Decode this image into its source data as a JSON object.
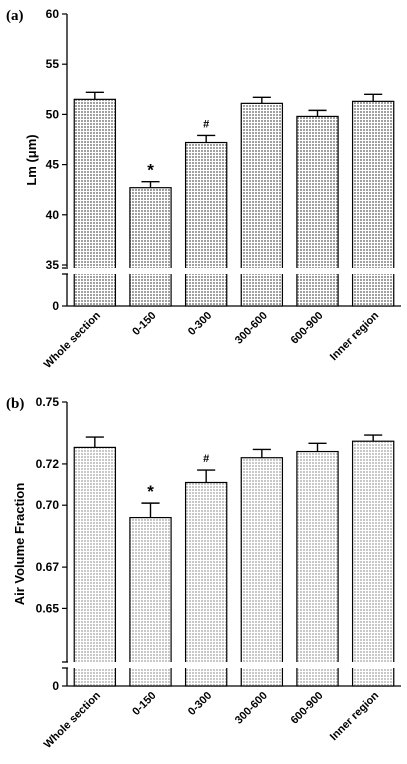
{
  "chart_data": [
    {
      "type": "bar",
      "panel_label": "(a)",
      "ylabel": "Lm (μm)",
      "categories": [
        "Whole section",
        "0-150",
        "0-300",
        "300-600",
        "600-900",
        "Inner region"
      ],
      "values": [
        51.5,
        42.7,
        47.2,
        51.1,
        49.8,
        51.3
      ],
      "errors": [
        0.7,
        0.6,
        0.7,
        0.6,
        0.6,
        0.7
      ],
      "annotations": [
        "",
        "*",
        "#",
        "",
        "",
        ""
      ],
      "ylim": [
        35,
        60
      ],
      "axis_break": true,
      "upper_ticks": [
        "35",
        "40",
        "45",
        "50",
        "55",
        "60"
      ],
      "lower_tick": "0",
      "bar_fill": "#a0a0a0"
    },
    {
      "type": "bar",
      "panel_label": "(b)",
      "ylabel": "Air Volume Fraction",
      "categories": [
        "Whole section",
        "0-150",
        "0-300",
        "300-600",
        "600-900",
        "Inner region"
      ],
      "values": [
        0.728,
        0.694,
        0.711,
        0.723,
        0.726,
        0.731
      ],
      "errors": [
        0.005,
        0.007,
        0.006,
        0.004,
        0.004,
        0.003
      ],
      "annotations": [
        "",
        "*",
        "#",
        "",
        "",
        ""
      ],
      "ylim": [
        0.625,
        0.75
      ],
      "axis_break": true,
      "upper_ticks": [
        "0.65",
        "0.67",
        "0.70",
        "0.72",
        "0.75"
      ],
      "lower_tick": "0",
      "bar_fill": "#c8c8c8"
    }
  ]
}
